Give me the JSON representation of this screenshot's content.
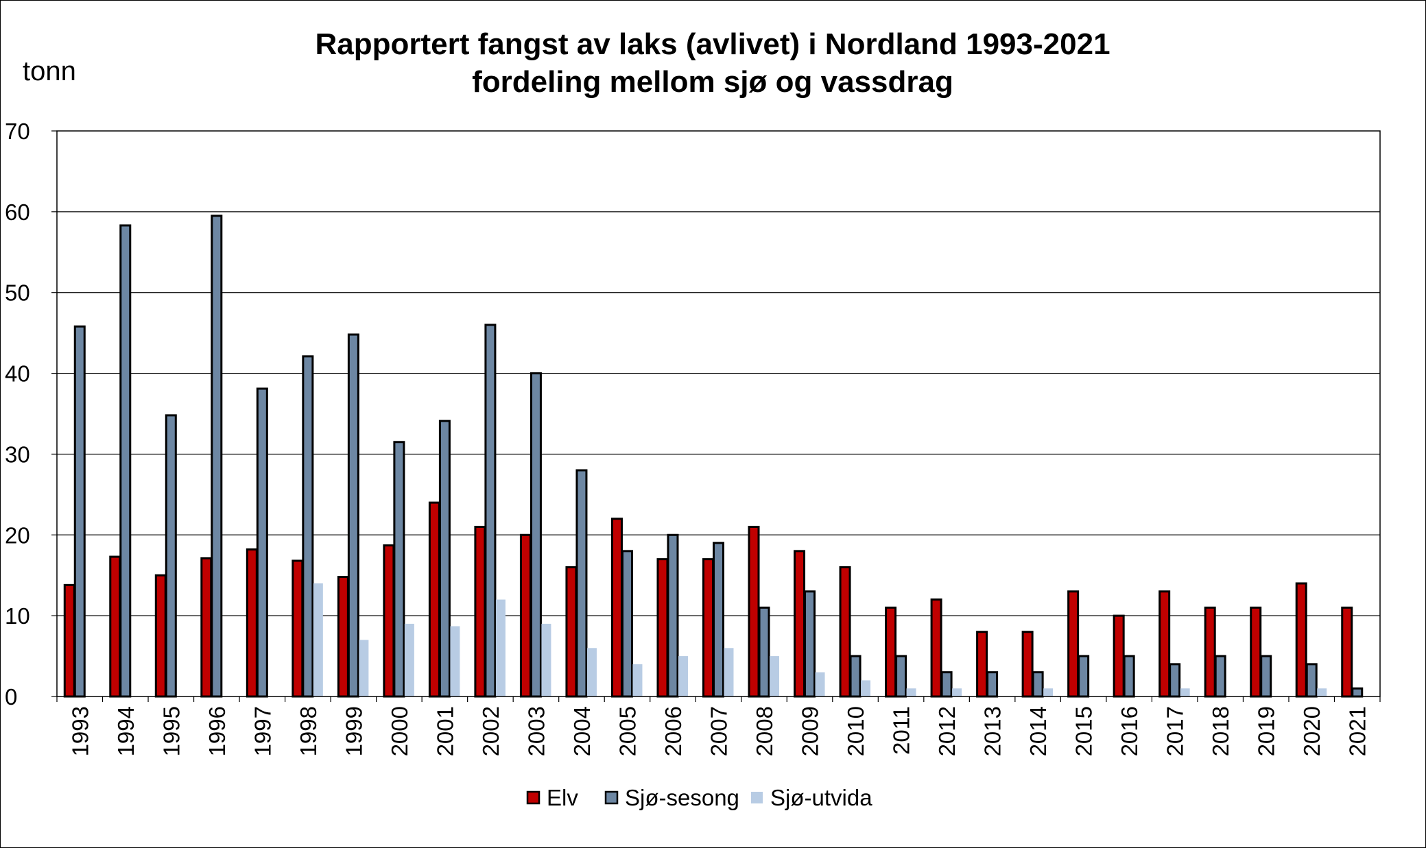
{
  "chart_data": {
    "type": "bar",
    "title": "Rapportert fangst av laks (avlivet) i Nordland 1993-2021",
    "subtitle": "fordeling mellom sjø og vassdrag",
    "ylabel": "tonn",
    "ylim": [
      0,
      70
    ],
    "yticks": [
      0,
      10,
      20,
      30,
      40,
      50,
      60,
      70
    ],
    "grid": true,
    "legend_position": "bottom",
    "categories": [
      "1993",
      "1994",
      "1995",
      "1996",
      "1997",
      "1998",
      "1999",
      "2000",
      "2001",
      "2002",
      "2003",
      "2004",
      "2005",
      "2006",
      "2007",
      "2008",
      "2009",
      "2010",
      "2011",
      "2012",
      "2013",
      "2014",
      "2015",
      "2016",
      "2017",
      "2018",
      "2019",
      "2020",
      "2021"
    ],
    "series": [
      {
        "name": "Elv",
        "color": "#c00000",
        "outlined": true,
        "values": [
          13.8,
          17.3,
          15,
          17.1,
          18.2,
          16.8,
          14.8,
          18.7,
          24,
          21,
          20,
          16,
          22,
          17,
          17,
          21,
          18,
          16,
          11,
          12,
          8,
          8,
          13,
          10,
          13,
          11,
          11,
          14,
          11
        ]
      },
      {
        "name": "Sjø-sesong",
        "color": "#6d87a3",
        "outlined": true,
        "values": [
          45.8,
          58.3,
          34.8,
          59.5,
          38.1,
          42.1,
          44.8,
          31.5,
          34.1,
          46,
          40,
          28,
          18,
          20,
          19,
          11,
          13,
          5,
          5,
          3,
          3,
          3,
          5,
          5,
          4,
          5,
          5,
          4,
          1
        ]
      },
      {
        "name": "Sjø-utvida",
        "color": "#b8cce4",
        "outlined": false,
        "values": [
          0,
          0,
          0,
          0,
          0,
          14,
          7,
          9,
          8.7,
          12,
          9,
          6,
          4,
          5,
          6,
          5,
          3,
          2,
          1,
          1,
          0,
          1,
          0,
          0,
          1,
          0,
          0,
          1,
          0
        ]
      }
    ]
  }
}
